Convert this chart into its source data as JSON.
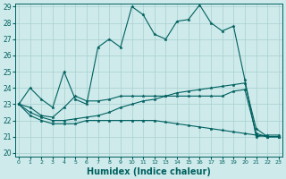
{
  "xlabel": "Humidex (Indice chaleur)",
  "background_color": "#ceeaea",
  "grid_color": "#a8d0d0",
  "line_color": "#006060",
  "xlim": [
    0,
    23
  ],
  "ylim": [
    20,
    29
  ],
  "xticks": [
    0,
    1,
    2,
    3,
    4,
    5,
    6,
    7,
    8,
    9,
    10,
    11,
    12,
    13,
    14,
    15,
    16,
    17,
    18,
    19,
    20,
    21,
    22,
    23
  ],
  "yticks": [
    20,
    21,
    22,
    23,
    24,
    25,
    26,
    27,
    28,
    29
  ],
  "series1": [
    23.0,
    24.0,
    23.3,
    22.8,
    25.0,
    23.3,
    23.0,
    26.5,
    27.0,
    26.5,
    29.0,
    28.5,
    27.3,
    27.0,
    28.1,
    28.2,
    29.1,
    28.0,
    27.5,
    27.8,
    24.5,
    21.0,
    21.1,
    21.1
  ],
  "series2": [
    23.0,
    22.8,
    22.3,
    22.2,
    22.8,
    23.5,
    23.2,
    23.2,
    23.3,
    23.5,
    23.5,
    23.5,
    23.5,
    23.5,
    23.5,
    23.5,
    23.5,
    23.5,
    23.5,
    23.8,
    23.9,
    21.2,
    21.0,
    21.0
  ],
  "series3": [
    23.0,
    22.5,
    22.2,
    22.0,
    22.0,
    22.1,
    22.2,
    22.3,
    22.5,
    22.8,
    23.0,
    23.2,
    23.3,
    23.5,
    23.7,
    23.8,
    23.9,
    24.0,
    24.1,
    24.2,
    24.3,
    21.5,
    21.0,
    21.0
  ],
  "series4": [
    23.0,
    22.3,
    22.0,
    21.8,
    21.8,
    21.8,
    22.0,
    22.0,
    22.0,
    22.0,
    22.0,
    22.0,
    22.0,
    21.9,
    21.8,
    21.7,
    21.6,
    21.5,
    21.4,
    21.3,
    21.2,
    21.1,
    21.0,
    21.0
  ]
}
